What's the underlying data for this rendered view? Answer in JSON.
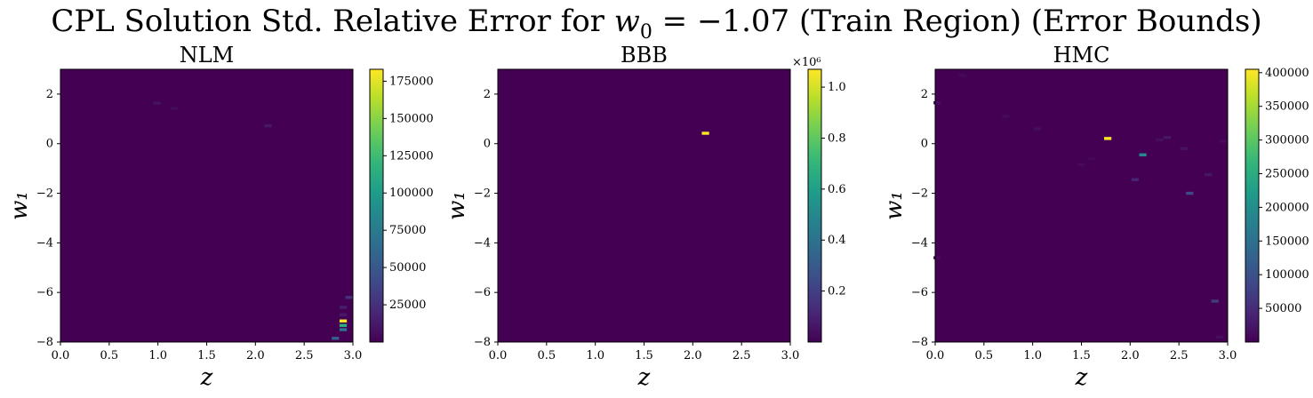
{
  "figure": {
    "title": "CPL Solution Std. Relative Error for w₀ = −1.07 (Train Region) (Error Bounds)"
  },
  "chart_data": [
    {
      "type": "heatmap",
      "title": "NLM",
      "xlabel": "z",
      "ylabel": "w₁",
      "xlim": [
        0.0,
        3.0
      ],
      "ylim": [
        -8,
        3
      ],
      "xticks": [
        "0.0",
        "0.5",
        "1.0",
        "1.5",
        "2.0",
        "2.5",
        "3.0"
      ],
      "yticks": [
        "2",
        "0",
        "−2",
        "−4",
        "−6",
        "−8"
      ],
      "colormap": "viridis",
      "background_value": 0,
      "colorbar": {
        "min": 0,
        "max": 183000,
        "ticks": [
          "25000",
          "50000",
          "75000",
          "100000",
          "125000",
          "150000",
          "175000"
        ],
        "tick_values": [
          25000,
          50000,
          75000,
          100000,
          125000,
          150000,
          175000
        ],
        "scale_label": ""
      },
      "cells": [
        {
          "z": 0.99,
          "w1": 1.63,
          "value": 9000
        },
        {
          "z": 1.17,
          "w1": 1.42,
          "value": 5000
        },
        {
          "z": 2.13,
          "w1": 0.72,
          "value": 12000
        },
        {
          "z": 2.96,
          "w1": -6.2,
          "value": 25000
        },
        {
          "z": 2.9,
          "w1": -6.6,
          "value": 15000
        },
        {
          "z": 2.9,
          "w1": -6.9,
          "value": 12000
        },
        {
          "z": 2.9,
          "w1": -7.15,
          "value": 183000
        },
        {
          "z": 2.9,
          "w1": -7.33,
          "value": 115000
        },
        {
          "z": 2.9,
          "w1": -7.5,
          "value": 70000
        },
        {
          "z": 2.82,
          "w1": -7.85,
          "value": 55000
        }
      ]
    },
    {
      "type": "heatmap",
      "title": "BBB",
      "xlabel": "z",
      "ylabel": "w₁",
      "xlim": [
        0.0,
        3.0
      ],
      "ylim": [
        -8,
        3
      ],
      "xticks": [
        "0.0",
        "0.5",
        "1.0",
        "1.5",
        "2.0",
        "2.5",
        "3.0"
      ],
      "yticks": [
        "2",
        "0",
        "−2",
        "−4",
        "−6",
        "−8"
      ],
      "colormap": "viridis",
      "background_value": 0,
      "colorbar": {
        "min": 0,
        "max": 1.07,
        "ticks": [
          "0.2",
          "0.4",
          "0.6",
          "0.8",
          "1.0"
        ],
        "tick_values": [
          0.2,
          0.4,
          0.6,
          0.8,
          1.0
        ],
        "scale_label": "×10⁶"
      },
      "cells": [
        {
          "z": 2.13,
          "w1": 0.42,
          "value": 1.07
        }
      ]
    },
    {
      "type": "heatmap",
      "title": "HMC",
      "xlabel": "z",
      "ylabel": "w₁",
      "xlim": [
        0.0,
        3.0
      ],
      "ylim": [
        -8,
        3
      ],
      "xticks": [
        "0.0",
        "0.5",
        "1.0",
        "1.5",
        "2.0",
        "2.5",
        "3.0"
      ],
      "yticks": [
        "2",
        "0",
        "−2",
        "−4",
        "−6",
        "−8"
      ],
      "colormap": "viridis",
      "background_value": 0,
      "colorbar": {
        "min": 0,
        "max": 405000,
        "ticks": [
          "50000",
          "100000",
          "150000",
          "200000",
          "250000",
          "300000",
          "350000",
          "400000"
        ],
        "tick_values": [
          50000,
          100000,
          150000,
          200000,
          250000,
          300000,
          350000,
          400000
        ],
        "scale_label": ""
      },
      "cells": [
        {
          "z": 1.77,
          "w1": 0.21,
          "value": 405000
        },
        {
          "z": 2.13,
          "w1": -0.45,
          "value": 190000
        },
        {
          "z": 2.61,
          "w1": -2.0,
          "value": 90000
        },
        {
          "z": 2.87,
          "w1": -6.35,
          "value": 70000
        },
        {
          "z": 2.05,
          "w1": -1.45,
          "value": 40000
        },
        {
          "z": 2.38,
          "w1": 0.25,
          "value": 25000
        },
        {
          "z": 2.55,
          "w1": -0.2,
          "value": 20000
        },
        {
          "z": 2.8,
          "w1": -1.25,
          "value": 25000
        },
        {
          "z": 1.05,
          "w1": 0.6,
          "value": 15000
        },
        {
          "z": 0.02,
          "w1": 1.65,
          "value": 15000
        },
        {
          "z": 0.72,
          "w1": 1.1,
          "value": 10000
        },
        {
          "z": 0.28,
          "w1": 2.75,
          "value": 10000
        },
        {
          "z": 2.3,
          "w1": 0.15,
          "value": 15000
        },
        {
          "z": 2.95,
          "w1": 0.1,
          "value": 12000
        },
        {
          "z": 1.5,
          "w1": -0.85,
          "value": 10000
        },
        {
          "z": 2.92,
          "w1": -7.8,
          "value": 15000
        },
        {
          "z": 0.02,
          "w1": -4.6,
          "value": 8000
        },
        {
          "z": 1.6,
          "w1": -0.6,
          "value": 8000
        }
      ]
    }
  ]
}
